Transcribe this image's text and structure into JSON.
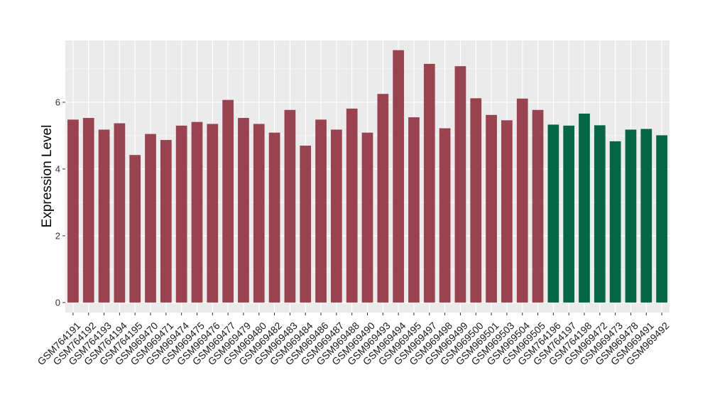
{
  "chart_data": {
    "type": "bar",
    "title": "",
    "xlabel": "",
    "ylabel": "Expression Level",
    "ylim": [
      -0.3,
      7.85
    ],
    "yticks": [
      0,
      2,
      4,
      6
    ],
    "grid": true,
    "legend": "none",
    "colors": {
      "group1": "#9a4350",
      "group2": "#046644",
      "panel": "#ebebeb",
      "grid": "#ffffff"
    },
    "categories": [
      "GSM764191",
      "GSM764192",
      "GSM764193",
      "GSM764194",
      "GSM764195",
      "GSM969470",
      "GSM969471",
      "GSM969474",
      "GSM969475",
      "GSM969476",
      "GSM969477",
      "GSM969479",
      "GSM969480",
      "GSM969482",
      "GSM969483",
      "GSM969484",
      "GSM969486",
      "GSM969487",
      "GSM969488",
      "GSM969490",
      "GSM969493",
      "GSM969494",
      "GSM969495",
      "GSM969497",
      "GSM969498",
      "GSM969499",
      "GSM969500",
      "GSM969501",
      "GSM969503",
      "GSM969504",
      "GSM969505",
      "GSM764196",
      "GSM764197",
      "GSM764198",
      "GSM969472",
      "GSM969473",
      "GSM969478",
      "GSM969491",
      "GSM969492"
    ],
    "values": [
      5.48,
      5.53,
      5.18,
      5.37,
      4.42,
      5.05,
      4.87,
      5.3,
      5.41,
      5.35,
      6.07,
      5.53,
      5.35,
      5.09,
      5.77,
      4.7,
      5.48,
      5.18,
      5.81,
      5.09,
      6.25,
      7.56,
      5.55,
      7.15,
      5.22,
      7.08,
      6.12,
      5.62,
      5.46,
      6.11,
      5.77,
      5.33,
      5.3,
      5.66,
      5.31,
      4.83,
      5.18,
      5.2,
      5.01
    ],
    "groups": [
      1,
      1,
      1,
      1,
      1,
      1,
      1,
      1,
      1,
      1,
      1,
      1,
      1,
      1,
      1,
      1,
      1,
      1,
      1,
      1,
      1,
      1,
      1,
      1,
      1,
      1,
      1,
      1,
      1,
      1,
      1,
      2,
      2,
      2,
      2,
      2,
      2,
      2,
      2
    ]
  }
}
